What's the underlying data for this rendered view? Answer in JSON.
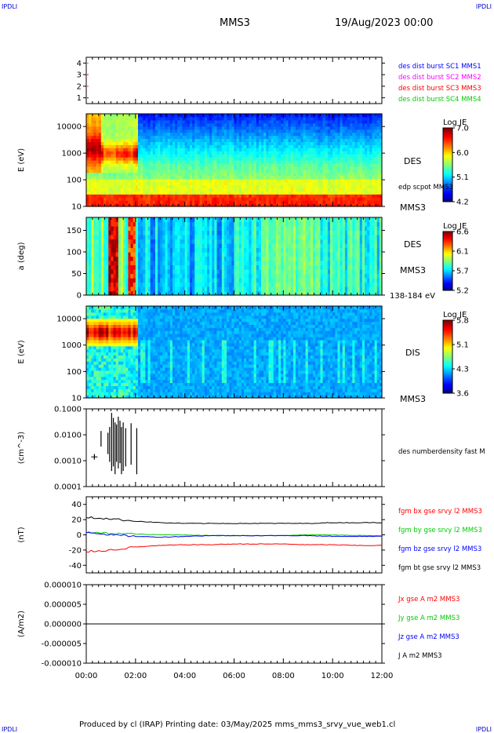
{
  "header": {
    "corner_tl": "IPDLI",
    "corner_tr": "IPDLI",
    "corner_bl": "IPDLI",
    "corner_br": "IPDLI",
    "spacecraft": "MMS3",
    "date": "19/Aug/2023 00:00"
  },
  "footer": {
    "text": "Produced by cl (IRAP)   Printing date: 03/May/2025   mms_mms3_srvy_vue_web1.cl"
  },
  "colors": {
    "blue": "#0000ff",
    "magenta": "#ff00ff",
    "red": "#ff0000",
    "green": "#00cc00",
    "black": "#000000"
  },
  "chart_data": [
    {
      "type": "scatter",
      "ylim": [
        0.5,
        4.5
      ],
      "yticks": [
        "1",
        "2",
        "3",
        "4"
      ],
      "series": [
        {
          "name": "des dist burst SC1 MMS1",
          "color": "#0000ff"
        },
        {
          "name": "des dist burst SC2 MMS2",
          "color": "#ff00ff"
        },
        {
          "name": "des dist burst SC3 MMS3",
          "color": "#ff0000"
        },
        {
          "name": "des dist burst SC4 MMS4",
          "color": "#00cc00"
        }
      ]
    },
    {
      "type": "heatmap",
      "ylabel": "E (eV)",
      "yscale": "log",
      "ylim": [
        10,
        30000
      ],
      "yticks": [
        "10",
        "100",
        "1000",
        "10000"
      ],
      "label": "DES",
      "label2": "MMS3",
      "overlay": "edp scpot MMS3",
      "colorbar": {
        "title": "Log JE",
        "ticks": [
          "7.0",
          "6.0",
          "5.1",
          "4.2"
        ]
      }
    },
    {
      "type": "heatmap",
      "ylabel": "a (deg)",
      "ylim": [
        0,
        180
      ],
      "yticks": [
        "0",
        "50",
        "100",
        "150"
      ],
      "label": "DES",
      "label2": "MMS3",
      "note": "138-184 eV",
      "colorbar": {
        "title": "Log JE",
        "ticks": [
          "6.6",
          "6.1",
          "5.7",
          "5.2"
        ]
      }
    },
    {
      "type": "heatmap",
      "ylabel": "E (eV)",
      "yscale": "log",
      "ylim": [
        10,
        30000
      ],
      "yticks": [
        "10",
        "100",
        "1000",
        "10000"
      ],
      "label": "DIS",
      "label2": "MMS3",
      "colorbar": {
        "title": "Log JE",
        "ticks": [
          "5.8",
          "5.1",
          "4.3",
          "3.6"
        ]
      }
    },
    {
      "type": "line",
      "ylabel": "(cm^-3)",
      "yscale": "log",
      "ylim": [
        0.0001,
        0.1
      ],
      "yticks": [
        "0.0001",
        "0.0010",
        "0.0100",
        "0.1000"
      ],
      "series": [
        {
          "name": "des numberdensity fast M",
          "color": "#000000"
        }
      ],
      "points": [
        {
          "t": 0.33,
          "lo": 0.0011,
          "hi": 0.0018
        },
        {
          "t": 0.6,
          "lo": 0.0035,
          "hi": 0.014
        },
        {
          "t": 0.88,
          "lo": 0.0018,
          "hi": 0.012
        },
        {
          "t": 0.95,
          "lo": 0.0009,
          "hi": 0.02
        },
        {
          "t": 1.03,
          "lo": 0.0004,
          "hi": 0.07
        },
        {
          "t": 1.1,
          "lo": 0.0006,
          "hi": 0.045
        },
        {
          "t": 1.17,
          "lo": 0.0003,
          "hi": 0.03
        },
        {
          "t": 1.23,
          "lo": 0.0009,
          "hi": 0.025
        },
        {
          "t": 1.3,
          "lo": 0.0005,
          "hi": 0.05
        },
        {
          "t": 1.37,
          "lo": 0.0008,
          "hi": 0.035
        },
        {
          "t": 1.43,
          "lo": 0.0003,
          "hi": 0.02
        },
        {
          "t": 1.5,
          "lo": 0.0004,
          "hi": 0.03
        },
        {
          "t": 1.6,
          "lo": 0.0006,
          "hi": 0.018
        },
        {
          "t": 1.82,
          "lo": 0.0007,
          "hi": 0.028
        },
        {
          "t": 2.05,
          "lo": 0.0003,
          "hi": 0.018
        }
      ]
    },
    {
      "type": "line",
      "ylabel": "(nT)",
      "ylim": [
        -50,
        50
      ],
      "yticks": [
        "-40",
        "-20",
        "0",
        "20",
        "40"
      ],
      "series": [
        {
          "name": "fgm bx gse srvy l2 MMS3",
          "color": "#ff0000",
          "values": [
            -22,
            -20,
            -16,
            -14,
            -13,
            -13,
            -12,
            -12,
            -12,
            -13,
            -13,
            -14,
            -14
          ]
        },
        {
          "name": "fgm by gse srvy l2 MMS3",
          "color": "#00cc00",
          "values": [
            3,
            2,
            1,
            0,
            0,
            -1,
            -1,
            -1,
            -1,
            0,
            0,
            -1,
            -1
          ]
        },
        {
          "name": "fgm bz gse srvy l2 MMS3",
          "color": "#0000ff",
          "values": [
            4,
            0,
            -2,
            -3,
            -2,
            -1,
            -1,
            -1,
            -1,
            -1,
            -2,
            -2,
            -2
          ]
        },
        {
          "name": "fgm bt gse srvy l2 MMS3",
          "color": "#000000",
          "values": [
            23,
            21,
            18,
            16,
            15,
            15,
            15,
            15,
            15,
            15,
            16,
            16,
            16
          ]
        }
      ]
    },
    {
      "type": "line",
      "ylabel": "(A/m2)",
      "ylim": [
        -1e-05,
        1e-05
      ],
      "yticks": [
        "-0.000010",
        "-0.000005",
        "0.000000",
        "0.000005",
        "0.000010"
      ],
      "series": [
        {
          "name": "Jx gse A m2 MMS3",
          "color": "#ff0000"
        },
        {
          "name": "Jy gse A m2 MMS3",
          "color": "#00cc00"
        },
        {
          "name": "Jz gse A m2 MMS3",
          "color": "#0000ff"
        },
        {
          "name": "J A m2 MMS3",
          "color": "#000000"
        }
      ]
    }
  ],
  "time_axis": {
    "range_hours": [
      0,
      12
    ],
    "tick_labels": [
      "00:00",
      "02:00",
      "04:00",
      "06:00",
      "08:00",
      "10:00",
      "12:00"
    ]
  }
}
